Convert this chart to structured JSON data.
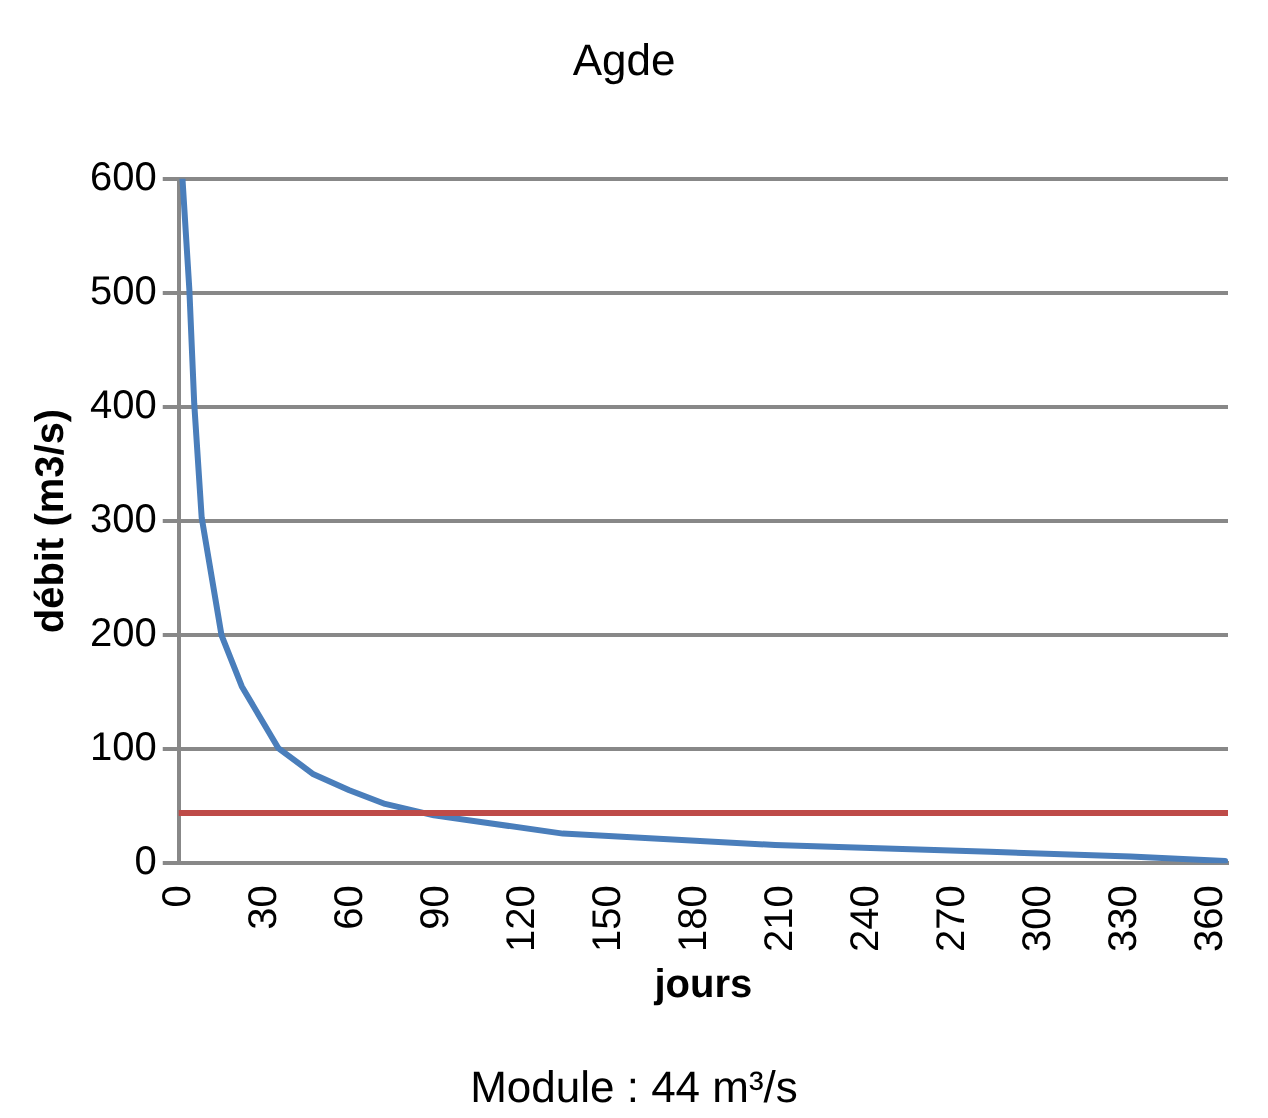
{
  "chart_data": {
    "type": "line",
    "title": "Agde",
    "xlabel": "jours",
    "ylabel": "débit (m3/s)",
    "annotations": [
      "Module : 44 m³/s"
    ],
    "x": [
      1.3,
      3.7,
      5.4,
      8,
      14.9,
      22,
      34.7,
      47,
      59.5,
      72,
      89,
      134,
      208,
      283,
      332,
      365
    ],
    "series": [
      {
        "color": "#4a7ebb",
        "values": [
          600,
          503,
          403,
          303,
          200,
          155,
          101,
          78,
          64,
          52,
          42,
          26,
          16,
          10,
          6,
          2
        ]
      }
    ],
    "ref_lines": [
      {
        "axis": "y",
        "value": 44,
        "color": "#be4b48"
      }
    ],
    "xlim": [
      0,
      366
    ],
    "xticks": [
      0,
      30,
      60,
      90,
      120,
      150,
      180,
      210,
      240,
      270,
      300,
      330,
      360
    ],
    "ylim": [
      0,
      600
    ],
    "yticks": [
      0,
      100,
      200,
      300,
      400,
      500,
      600
    ],
    "grid": "y",
    "legend": false,
    "marker": "none",
    "line_style": "solid"
  }
}
